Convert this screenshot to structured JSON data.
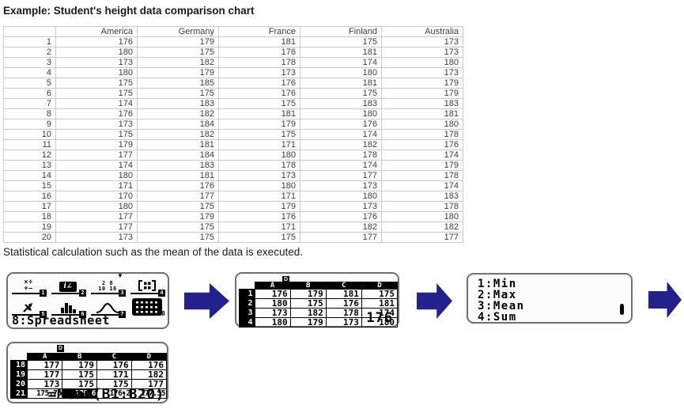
{
  "page": {
    "title": "Example: Student's height data comparison chart",
    "caption": "Statistical calculation such as the mean of the data is executed."
  },
  "colors": {
    "arrow": "#23228C",
    "lcd_border": "#6F6F6F",
    "table_border": "#C9C9C9"
  },
  "heights_table": {
    "columns": [
      "",
      "America",
      "Germany",
      "France",
      "Finland",
      "Australia"
    ],
    "rows": [
      [
        "1",
        "176",
        "179",
        "181",
        "175",
        "173"
      ],
      [
        "2",
        "180",
        "175",
        "176",
        "181",
        "173"
      ],
      [
        "3",
        "173",
        "182",
        "178",
        "174",
        "180"
      ],
      [
        "4",
        "180",
        "179",
        "173",
        "180",
        "173"
      ],
      [
        "5",
        "175",
        "185",
        "176",
        "181",
        "179"
      ],
      [
        "6",
        "175",
        "175",
        "176",
        "175",
        "179"
      ],
      [
        "7",
        "174",
        "183",
        "175",
        "183",
        "183"
      ],
      [
        "8",
        "176",
        "182",
        "181",
        "180",
        "181"
      ],
      [
        "9",
        "173",
        "184",
        "179",
        "176",
        "180"
      ],
      [
        "10",
        "175",
        "182",
        "175",
        "174",
        "178"
      ],
      [
        "11",
        "179",
        "181",
        "171",
        "182",
        "176"
      ],
      [
        "12",
        "177",
        "184",
        "180",
        "178",
        "174"
      ],
      [
        "13",
        "174",
        "183",
        "178",
        "174",
        "179"
      ],
      [
        "14",
        "180",
        "181",
        "173",
        "177",
        "178"
      ],
      [
        "15",
        "171",
        "176",
        "180",
        "173",
        "174"
      ],
      [
        "16",
        "170",
        "177",
        "171",
        "180",
        "183"
      ],
      [
        "17",
        "180",
        "175",
        "179",
        "173",
        "178"
      ],
      [
        "18",
        "177",
        "179",
        "176",
        "176",
        "180"
      ],
      [
        "19",
        "177",
        "175",
        "171",
        "182",
        "182"
      ],
      [
        "20",
        "173",
        "175",
        "175",
        "177",
        "177"
      ]
    ]
  },
  "calc": {
    "menu_screen": {
      "down_indicator": "▼",
      "items": [
        {
          "key": "1",
          "icon": "calculate-icon",
          "glyph_top": "×÷",
          "glyph_bottom": "+−"
        },
        {
          "key": "2",
          "icon": "complex-icon",
          "glyph": "i∠"
        },
        {
          "key": "3",
          "icon": "base-n-icon",
          "glyph_top": "2 8",
          "glyph_bottom": "10 16"
        },
        {
          "key": "4",
          "icon": "matrix-icon"
        },
        {
          "key": "5",
          "icon": "vector-icon"
        },
        {
          "key": "6",
          "icon": "statistics-icon"
        },
        {
          "key": "7",
          "icon": "distribution-icon"
        },
        {
          "key": "8",
          "icon": "spreadsheet-icon",
          "selected": true
        }
      ],
      "selection_label": "8:Spreadsheet"
    },
    "spreadsheet_screen_1": {
      "status_indicator": "D",
      "col_headers": [
        "A",
        "B",
        "C",
        "D"
      ],
      "row_headers": [
        "1",
        "2",
        "3",
        "4"
      ],
      "rows": [
        [
          "176",
          "179",
          "181",
          "175"
        ],
        [
          "180",
          "175",
          "176",
          "181"
        ],
        [
          "173",
          "182",
          "178",
          "174"
        ],
        [
          "180",
          "179",
          "173",
          "180"
        ]
      ],
      "cell_value": "176"
    },
    "stat_menu_screen": {
      "items": [
        "1:Min",
        "2:Max",
        "3:Mean",
        "4:Sum"
      ]
    },
    "spreadsheet_screen_2": {
      "status_indicator": "D",
      "col_headers": [
        "A",
        "B",
        "C",
        "D"
      ],
      "row_headers": [
        "18",
        "19",
        "20",
        "21"
      ],
      "rows": [
        [
          "177",
          "179",
          "176",
          "176"
        ],
        [
          "177",
          "175",
          "171",
          "182"
        ],
        [
          "173",
          "175",
          "175",
          "177"
        ],
        [
          "175.75",
          "179.6",
          "176.2",
          "177.55"
        ]
      ],
      "selected_cell": {
        "row": "21",
        "col": "B"
      },
      "formula": "=Mean(B1:B20)"
    }
  }
}
